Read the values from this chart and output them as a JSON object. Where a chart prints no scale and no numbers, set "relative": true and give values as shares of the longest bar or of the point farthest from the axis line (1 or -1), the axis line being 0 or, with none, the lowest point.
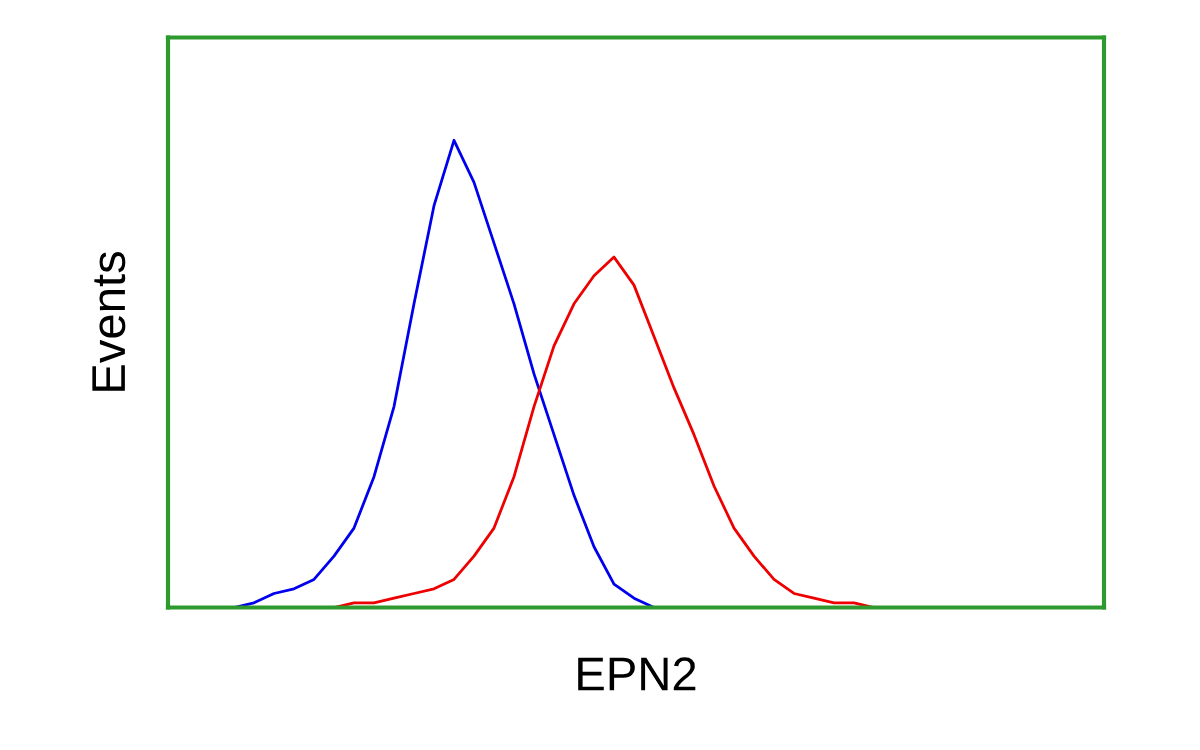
{
  "chart_data": {
    "type": "line",
    "relative": true,
    "xlabel": "EPN2",
    "ylabel": "Events",
    "grid": false,
    "legend": false,
    "marker": "none",
    "line_style": "solid",
    "categories": [
      null,
      null,
      null,
      null,
      null,
      null,
      null,
      null,
      null,
      null,
      null,
      null,
      null,
      null,
      null,
      null,
      null,
      null,
      null,
      null,
      null,
      null,
      null,
      null,
      null,
      null,
      null,
      null,
      null,
      null,
      null,
      null,
      null,
      null,
      null,
      null,
      null,
      null,
      null,
      null,
      null,
      null,
      null,
      null,
      null,
      null,
      null
    ],
    "series": [
      {
        "color": "#0000ee",
        "values": [
          null,
          null,
          0,
          0,
          0.01,
          0.03,
          0.04,
          0.06,
          0.11,
          0.17,
          0.28,
          0.43,
          0.65,
          0.86,
          1.0,
          0.91,
          0.78,
          0.65,
          0.5,
          0.37,
          0.24,
          0.13,
          0.05,
          0.02,
          0,
          0,
          null,
          null,
          null,
          null,
          null,
          null,
          null,
          null,
          null,
          null,
          null,
          null,
          null,
          null,
          null,
          null,
          null,
          null,
          null,
          null,
          null
        ]
      },
      {
        "color": "#ee0000",
        "values": [
          null,
          null,
          null,
          null,
          null,
          null,
          null,
          0,
          0,
          0.01,
          0.01,
          0.02,
          0.03,
          0.04,
          0.06,
          0.11,
          0.17,
          0.28,
          0.43,
          0.56,
          0.65,
          0.71,
          0.75,
          0.69,
          0.58,
          0.47,
          0.37,
          0.26,
          0.17,
          0.11,
          0.06,
          0.03,
          0.02,
          0.01,
          0.01,
          0,
          0,
          null,
          null,
          null,
          null,
          null,
          null,
          null,
          null,
          null,
          null
        ]
      }
    ]
  }
}
